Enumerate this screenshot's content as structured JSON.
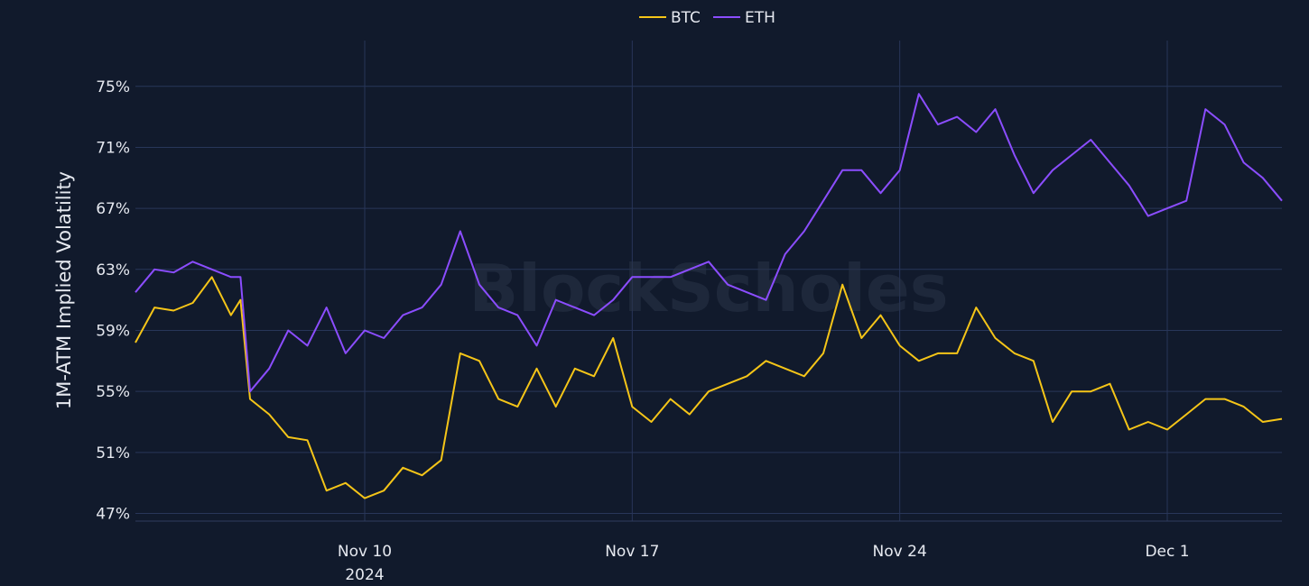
{
  "chart_data": {
    "type": "line",
    "ylabel": "1M-ATM Implied Volatility",
    "watermark": "BlockScholes",
    "legend_position": "top-center",
    "grid": true,
    "x_range": [
      "2024-11-04",
      "2024-12-04"
    ],
    "ylim": [
      46.5,
      78
    ],
    "y_ticks": [
      {
        "value": 47,
        "label": "47%"
      },
      {
        "value": 51,
        "label": "51%"
      },
      {
        "value": 55,
        "label": "55%"
      },
      {
        "value": 59,
        "label": "59%"
      },
      {
        "value": 63,
        "label": "63%"
      },
      {
        "value": 67,
        "label": "67%"
      },
      {
        "value": 71,
        "label": "71%"
      },
      {
        "value": 75,
        "label": "75%"
      }
    ],
    "x_ticks": [
      {
        "date": "2024-11-10",
        "label": "Nov 10",
        "sublabel": "2024"
      },
      {
        "date": "2024-11-17",
        "label": "Nov 17",
        "sublabel": ""
      },
      {
        "date": "2024-11-24",
        "label": "Nov 24",
        "sublabel": ""
      },
      {
        "date": "2024-12-01",
        "label": "Dec 1",
        "sublabel": ""
      }
    ],
    "series": [
      {
        "name": "BTC",
        "color": "#f5c518",
        "x": [
          "2024-11-04T00:00",
          "2024-11-04T12:00",
          "2024-11-05T00:00",
          "2024-11-05T12:00",
          "2024-11-06T00:00",
          "2024-11-06T12:00",
          "2024-11-06T18:00",
          "2024-11-07T00:00",
          "2024-11-07T12:00",
          "2024-11-08T00:00",
          "2024-11-08T12:00",
          "2024-11-09T00:00",
          "2024-11-09T12:00",
          "2024-11-10T00:00",
          "2024-11-10T12:00",
          "2024-11-11T00:00",
          "2024-11-11T12:00",
          "2024-11-12T00:00",
          "2024-11-12T12:00",
          "2024-11-13T00:00",
          "2024-11-13T12:00",
          "2024-11-14T00:00",
          "2024-11-14T12:00",
          "2024-11-15T00:00",
          "2024-11-15T12:00",
          "2024-11-16T00:00",
          "2024-11-16T12:00",
          "2024-11-17T00:00",
          "2024-11-17T12:00",
          "2024-11-18T00:00",
          "2024-11-18T12:00",
          "2024-11-19T00:00",
          "2024-11-19T12:00",
          "2024-11-20T00:00",
          "2024-11-20T12:00",
          "2024-11-21T00:00",
          "2024-11-21T12:00",
          "2024-11-22T00:00",
          "2024-11-22T12:00",
          "2024-11-23T00:00",
          "2024-11-23T12:00",
          "2024-11-24T00:00",
          "2024-11-24T12:00",
          "2024-11-25T00:00",
          "2024-11-25T12:00",
          "2024-11-26T00:00",
          "2024-11-26T12:00",
          "2024-11-27T00:00",
          "2024-11-27T12:00",
          "2024-11-28T00:00",
          "2024-11-28T12:00",
          "2024-11-29T00:00",
          "2024-11-29T12:00",
          "2024-11-30T00:00",
          "2024-11-30T12:00",
          "2024-12-01T00:00",
          "2024-12-01T12:00",
          "2024-12-02T00:00",
          "2024-12-02T12:00",
          "2024-12-03T00:00",
          "2024-12-03T12:00",
          "2024-12-04T00:00"
        ],
        "values": [
          58.2,
          60.5,
          60.3,
          60.8,
          62.5,
          60.0,
          61.0,
          54.5,
          53.5,
          52.0,
          51.8,
          48.5,
          49.0,
          48.0,
          48.5,
          50.0,
          49.5,
          50.5,
          57.5,
          57.0,
          54.5,
          54.0,
          56.5,
          54.0,
          56.5,
          56.0,
          58.5,
          54.0,
          53.0,
          54.5,
          53.5,
          55.0,
          55.5,
          56.0,
          57.0,
          56.5,
          56.0,
          57.5,
          62.0,
          58.5,
          60.0,
          58.0,
          57.0,
          57.5,
          57.5,
          60.5,
          58.5,
          57.5,
          57.0,
          53.0,
          55.0,
          55.0,
          55.5,
          52.5,
          53.0,
          52.5,
          53.5,
          54.5,
          54.5,
          54.0,
          53.0,
          53.2
        ]
      },
      {
        "name": "ETH",
        "color": "#8b4dff",
        "x": [
          "2024-11-04T00:00",
          "2024-11-04T12:00",
          "2024-11-05T00:00",
          "2024-11-05T12:00",
          "2024-11-06T00:00",
          "2024-11-06T12:00",
          "2024-11-06T18:00",
          "2024-11-07T00:00",
          "2024-11-07T12:00",
          "2024-11-08T00:00",
          "2024-11-08T12:00",
          "2024-11-09T00:00",
          "2024-11-09T12:00",
          "2024-11-10T00:00",
          "2024-11-10T12:00",
          "2024-11-11T00:00",
          "2024-11-11T12:00",
          "2024-11-12T00:00",
          "2024-11-12T12:00",
          "2024-11-13T00:00",
          "2024-11-13T12:00",
          "2024-11-14T00:00",
          "2024-11-14T12:00",
          "2024-11-15T00:00",
          "2024-11-15T12:00",
          "2024-11-16T00:00",
          "2024-11-16T12:00",
          "2024-11-17T00:00",
          "2024-11-17T12:00",
          "2024-11-18T00:00",
          "2024-11-18T12:00",
          "2024-11-19T00:00",
          "2024-11-19T12:00",
          "2024-11-20T00:00",
          "2024-11-20T12:00",
          "2024-11-21T00:00",
          "2024-11-21T12:00",
          "2024-11-22T00:00",
          "2024-11-22T12:00",
          "2024-11-23T00:00",
          "2024-11-23T12:00",
          "2024-11-24T00:00",
          "2024-11-24T12:00",
          "2024-11-25T00:00",
          "2024-11-25T12:00",
          "2024-11-26T00:00",
          "2024-11-26T12:00",
          "2024-11-27T00:00",
          "2024-11-27T12:00",
          "2024-11-28T00:00",
          "2024-11-28T12:00",
          "2024-11-29T00:00",
          "2024-11-29T12:00",
          "2024-11-30T00:00",
          "2024-11-30T12:00",
          "2024-12-01T00:00",
          "2024-12-01T12:00",
          "2024-12-02T00:00",
          "2024-12-02T12:00",
          "2024-12-03T00:00",
          "2024-12-03T12:00",
          "2024-12-04T00:00"
        ],
        "values": [
          61.5,
          63.0,
          62.8,
          63.5,
          63.0,
          62.5,
          62.5,
          55.0,
          56.5,
          59.0,
          58.0,
          60.5,
          57.5,
          59.0,
          58.5,
          60.0,
          60.5,
          62.0,
          65.5,
          62.0,
          60.5,
          60.0,
          58.0,
          61.0,
          60.5,
          60.0,
          61.0,
          62.5,
          62.5,
          62.5,
          63.0,
          63.5,
          62.0,
          61.5,
          61.0,
          64.0,
          65.5,
          67.5,
          69.5,
          69.5,
          68.0,
          69.5,
          74.5,
          72.5,
          73.0,
          72.0,
          73.5,
          70.5,
          68.0,
          69.5,
          70.5,
          71.5,
          70.0,
          68.5,
          66.5,
          67.0,
          67.5,
          73.5,
          72.5,
          70.0,
          69.0,
          67.5
        ]
      }
    ]
  }
}
